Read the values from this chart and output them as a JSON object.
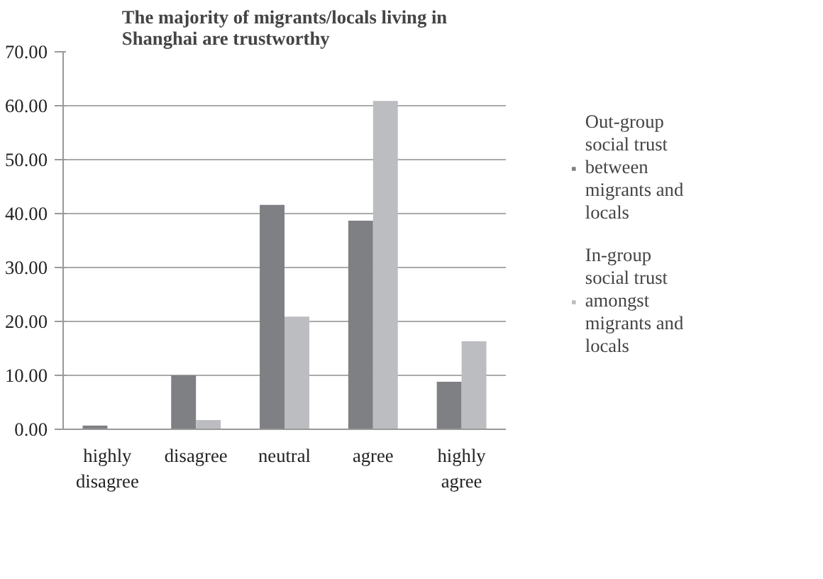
{
  "chart_data": {
    "type": "bar",
    "title": "The majority of migrants/locals living in Shanghai are trustworthy",
    "categories": [
      "highly disagree",
      "disagree",
      "neutral",
      "agree",
      "highly agree"
    ],
    "series": [
      {
        "name": "Out-group social trust between migrants and locals",
        "color": "#7f8083",
        "values": [
          0.7,
          10.0,
          41.6,
          38.7,
          8.8
        ]
      },
      {
        "name": "In-group social trust amongst migrants and locals",
        "color": "#bcbdc0",
        "values": [
          0.0,
          1.7,
          20.9,
          60.9,
          16.3
        ]
      }
    ],
    "ylim": [
      0,
      70
    ],
    "yticks": [
      {
        "value": 0,
        "label": "0.00"
      },
      {
        "value": 10,
        "label": "10.00"
      },
      {
        "value": 20,
        "label": "20.00"
      },
      {
        "value": 30,
        "label": "30.00"
      },
      {
        "value": 40,
        "label": "40.00"
      },
      {
        "value": 50,
        "label": "50.00"
      },
      {
        "value": 60,
        "label": "60.00"
      },
      {
        "value": 70,
        "label": "70.00"
      }
    ],
    "grid": "y",
    "legend": "right"
  }
}
